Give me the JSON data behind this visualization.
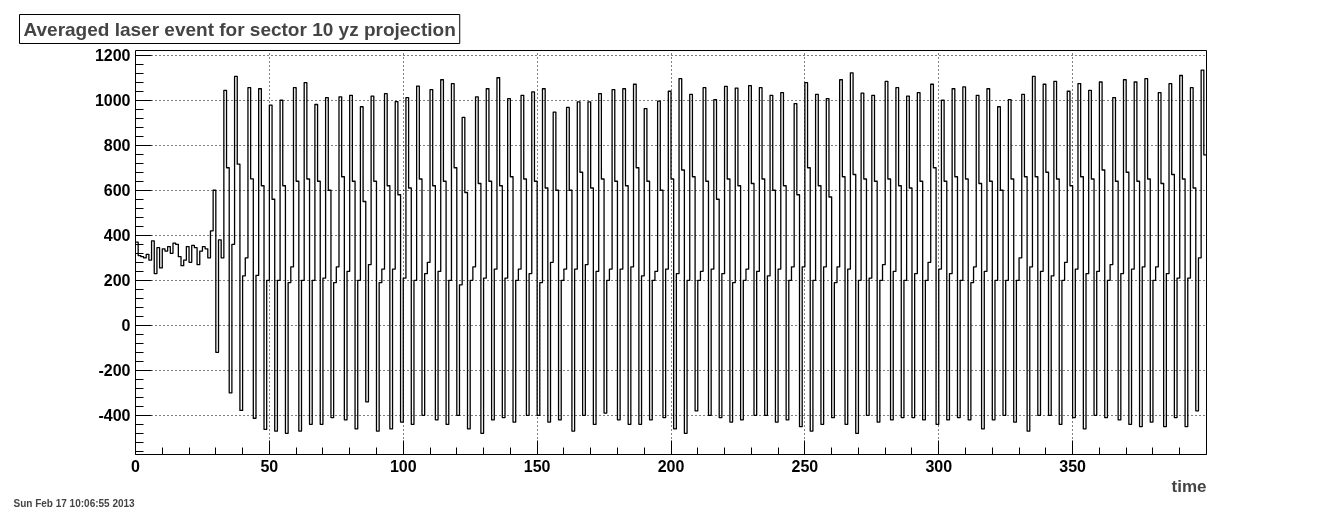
{
  "chart_data": {
    "type": "histogram",
    "title": "Averaged laser event for sector 10 yz projection",
    "xlabel": "time",
    "annotations": [
      "Sun Feb 17 10:06:55 2013"
    ],
    "bins": [
      0,
      1,
      2,
      3,
      4,
      5,
      6,
      7,
      8,
      9,
      10,
      11,
      12,
      13,
      14,
      15,
      16,
      17,
      18,
      19,
      20,
      21,
      22,
      23,
      24,
      25,
      26,
      27,
      28,
      29,
      30,
      31,
      32,
      33,
      34,
      35,
      36,
      37,
      38,
      39,
      40,
      41,
      42,
      43,
      44,
      45,
      46,
      47,
      48,
      49,
      50,
      51,
      52,
      53,
      54,
      55,
      56,
      57,
      58,
      59,
      60,
      61,
      62,
      63,
      64,
      65,
      66,
      67,
      68,
      69,
      70,
      71,
      72,
      73,
      74,
      75,
      76,
      77,
      78,
      79,
      80,
      81,
      82,
      83,
      84,
      85,
      86,
      87,
      88,
      89,
      90,
      91,
      92,
      93,
      94,
      95,
      96,
      97,
      98,
      99,
      100,
      101,
      102,
      103,
      104,
      105,
      106,
      107,
      108,
      109,
      110,
      111,
      112,
      113,
      114,
      115,
      116,
      117,
      118,
      119,
      120,
      121,
      122,
      123,
      124,
      125,
      126,
      127,
      128,
      129,
      130,
      131,
      132,
      133,
      134,
      135,
      136,
      137,
      138,
      139,
      140,
      141,
      142,
      143,
      144,
      145,
      146,
      147,
      148,
      149,
      150,
      151,
      152,
      153,
      154,
      155,
      156,
      157,
      158,
      159,
      160,
      161,
      162,
      163,
      164,
      165,
      166,
      167,
      168,
      169,
      170,
      171,
      172,
      173,
      174,
      175,
      176,
      177,
      178,
      179,
      180,
      181,
      182,
      183,
      184,
      185,
      186,
      187,
      188,
      189,
      190,
      191,
      192,
      193,
      194,
      195,
      196,
      197,
      198,
      199,
      200,
      201,
      202,
      203,
      204,
      205,
      206,
      207,
      208,
      209,
      210,
      211,
      212,
      213,
      214,
      215,
      216,
      217,
      218,
      219,
      220,
      221,
      222,
      223,
      224,
      225,
      226,
      227,
      228,
      229,
      230,
      231,
      232,
      233,
      234,
      235,
      236,
      237,
      238,
      239,
      240,
      241,
      242,
      243,
      244,
      245,
      246,
      247,
      248,
      249,
      250,
      251,
      252,
      253,
      254,
      255,
      256,
      257,
      258,
      259,
      260,
      261,
      262,
      263,
      264,
      265,
      266,
      267,
      268,
      269,
      270,
      271,
      272,
      273,
      274,
      275,
      276,
      277,
      278,
      279,
      280,
      281,
      282,
      283,
      284,
      285,
      286,
      287,
      288,
      289,
      290,
      291,
      292,
      293,
      294,
      295,
      296,
      297,
      298,
      299,
      300,
      301,
      302,
      303,
      304,
      305,
      306,
      307,
      308,
      309,
      310,
      311,
      312,
      313,
      314,
      315,
      316,
      317,
      318,
      319,
      320,
      321,
      322,
      323,
      324,
      325,
      326,
      327,
      328,
      329,
      330,
      331,
      332,
      333,
      334,
      335,
      336,
      337,
      338,
      339,
      340,
      341,
      342,
      343,
      344,
      345,
      346,
      347,
      348,
      349,
      350,
      351,
      352,
      353,
      354,
      355,
      356,
      357,
      358,
      359,
      360,
      361,
      362,
      363,
      364,
      365,
      366,
      367,
      368,
      369,
      370,
      371,
      372,
      373,
      374,
      375,
      376,
      377,
      378,
      379,
      380,
      381,
      382,
      383,
      384,
      385,
      386,
      387,
      388,
      389,
      390,
      391,
      392,
      393,
      394,
      395,
      396,
      397,
      398,
      399,
      400
    ],
    "values": [
      370,
      310,
      305,
      300,
      315,
      290,
      375,
      230,
      345,
      255,
      340,
      330,
      350,
      320,
      365,
      360,
      305,
      265,
      290,
      350,
      280,
      355,
      345,
      270,
      330,
      350,
      340,
      300,
      420,
      600,
      -120,
      380,
      300,
      1044,
      700,
      -300,
      360,
      1106,
      716,
      -378,
      220,
      300,
      1056,
      651,
      -413,
      222,
      1051,
      620,
      -462,
      200,
      978,
      560,
      -470,
      200,
      1000,
      620,
      -480,
      190,
      260,
      1056,
      640,
      -470,
      200,
      1078,
      650,
      -440,
      200,
      981,
      640,
      -440,
      210,
      1012,
      600,
      -410,
      190,
      260,
      1015,
      660,
      -420,
      240,
      1022,
      640,
      -460,
      200,
      971,
      550,
      -340,
      270,
      1018,
      640,
      -470,
      190,
      250,
      1029,
      620,
      -460,
      250,
      994,
      580,
      -430,
      210,
      1012,
      610,
      -440,
      200,
      1063,
      650,
      -400,
      230,
      280,
      1047,
      620,
      -420,
      240,
      1091,
      640,
      -440,
      200,
      1074,
      700,
      -400,
      180,
      924,
      590,
      -460,
      200,
      260,
      1015,
      630,
      -480,
      210,
      1051,
      640,
      -420,
      250,
      1100,
      620,
      -410,
      210,
      1007,
      660,
      -430,
      200,
      250,
      1022,
      650,
      -400,
      230,
      1037,
      640,
      -400,
      190,
      1051,
      610,
      -430,
      280,
      947,
      600,
      -420,
      200,
      250,
      968,
      600,
      -470,
      250,
      993,
      680,
      -400,
      270,
      993,
      610,
      -440,
      240,
      1029,
      650,
      -390,
      200,
      250,
      1047,
      640,
      -420,
      250,
      1051,
      620,
      -440,
      260,
      1071,
      700,
      -440,
      220,
      963,
      640,
      -420,
      200,
      240,
      996,
      600,
      -410,
      250,
      1040,
      650,
      -460,
      230,
      1096,
      690,
      -480,
      200,
      1026,
      660,
      -380,
      200,
      240,
      1056,
      640,
      -400,
      250,
      1003,
      560,
      -410,
      230,
      1062,
      650,
      -430,
      190,
      1054,
      620,
      -420,
      200,
      250,
      1065,
      630,
      -400,
      240,
      1056,
      650,
      -400,
      220,
      1022,
      600,
      -430,
      250,
      1034,
      620,
      -420,
      200,
      260,
      985,
      580,
      -450,
      260,
      1078,
      700,
      -470,
      200,
      1026,
      620,
      -440,
      260,
      1007,
      570,
      -410,
      190,
      260,
      1091,
      660,
      -440,
      250,
      1122,
      670,
      -480,
      200,
      1032,
      650,
      -400,
      210,
      1022,
      640,
      -430,
      200,
      270,
      1084,
      650,
      -420,
      240,
      1056,
      620,
      -410,
      200,
      1018,
      610,
      -410,
      230,
      1034,
      640,
      -420,
      200,
      280,
      1071,
      700,
      -440,
      250,
      1000,
      640,
      -420,
      230,
      1051,
      660,
      -410,
      200,
      1059,
      650,
      -420,
      190,
      260,
      1022,
      630,
      -460,
      240,
      1051,
      640,
      -420,
      200,
      971,
      600,
      -400,
      200,
      1003,
      650,
      -430,
      200,
      300,
      1026,
      660,
      -470,
      260,
      1106,
      660,
      -400,
      240,
      1071,
      680,
      -400,
      220,
      1084,
      650,
      -440,
      200,
      280,
      1040,
      620,
      -410,
      250,
      1074,
      660,
      -460,
      230,
      1044,
      650,
      -400,
      240,
      1081,
      690,
      -410,
      200,
      270,
      1012,
      640,
      -420,
      230,
      1091,
      680,
      -440,
      250,
      1081,
      640,
      -450,
      260,
      1096,
      650,
      -430,
      200,
      260,
      1034,
      630,
      -450,
      230,
      1074,
      670,
      -410,
      210,
      1110,
      650,
      -450,
      210,
      1056,
      610,
      -380,
      300,
      1134,
      757
    ],
    "color": "#000000",
    "xlim": [
      0,
      400
    ],
    "ylim": [
      -574,
      1221
    ],
    "xticks": [
      0,
      50,
      100,
      150,
      200,
      250,
      300,
      350
    ],
    "yticks": [
      -400,
      -200,
      0,
      200,
      400,
      600,
      800,
      1000,
      1200
    ],
    "grid": true
  }
}
